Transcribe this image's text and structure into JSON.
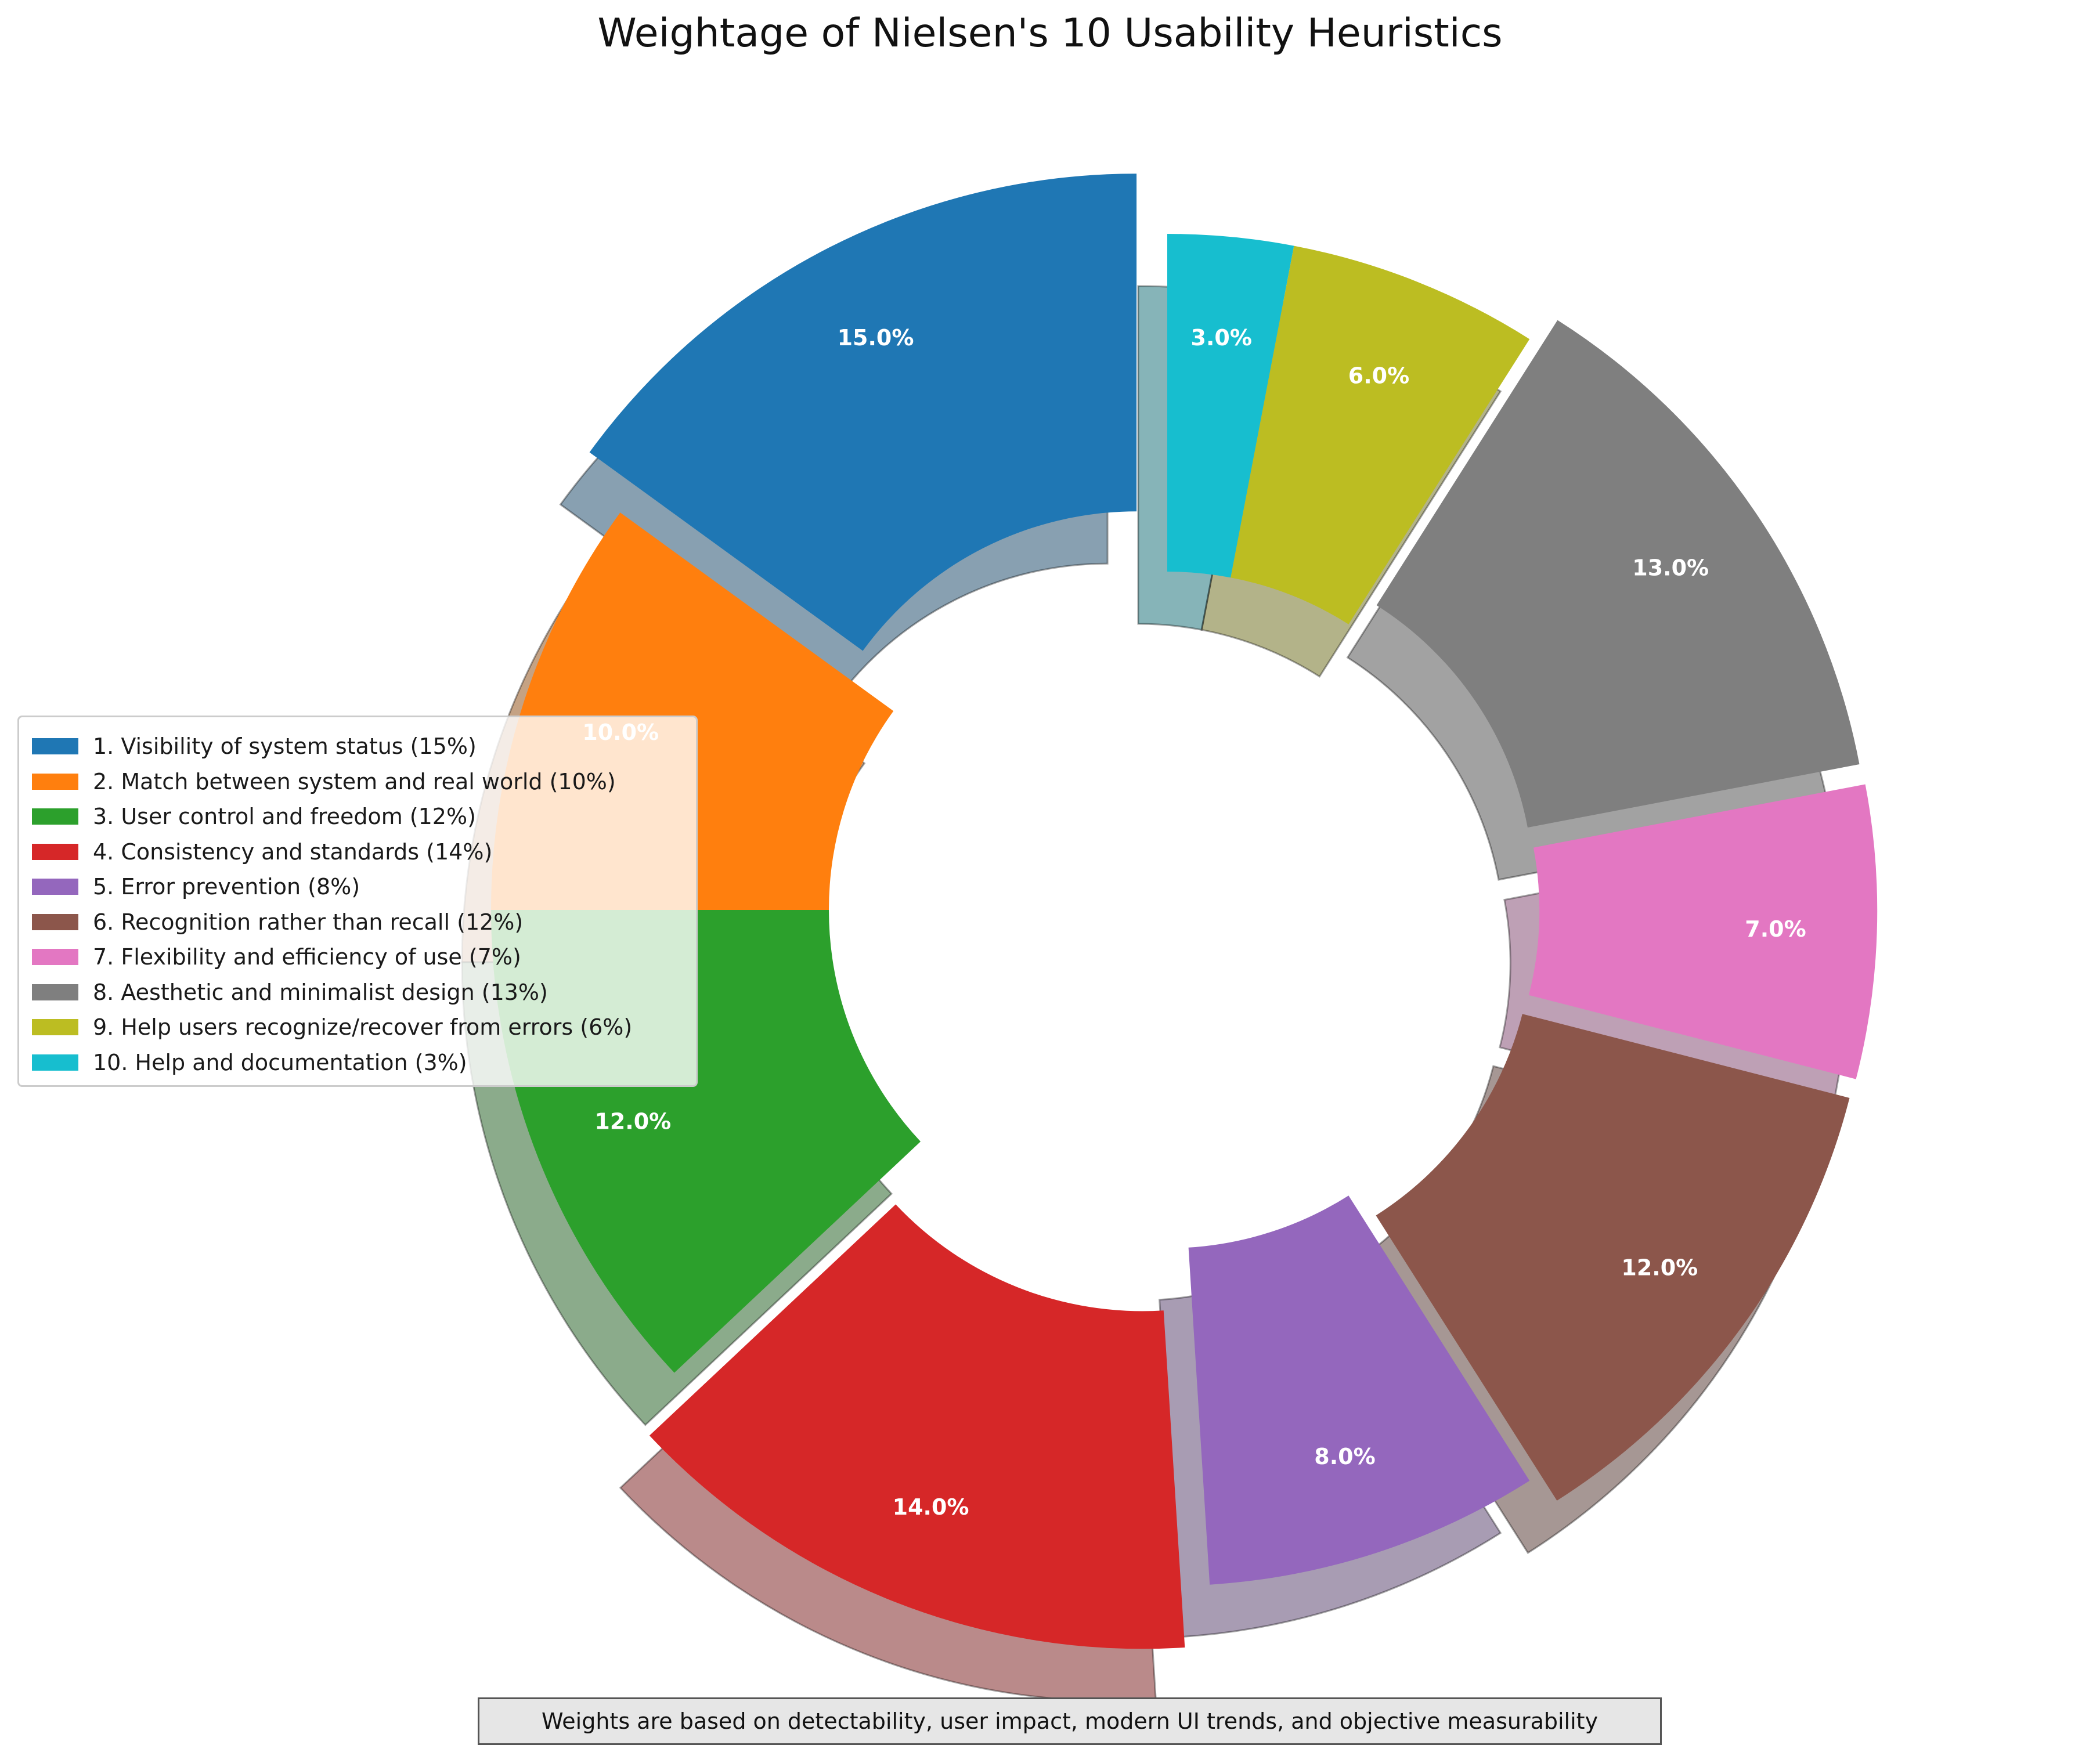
{
  "chart_data": {
    "type": "pie",
    "style": "donut",
    "title": "Weightage of Nielsen's 10 Usability Heuristics",
    "categories": [
      "1. Visibility of system status (15%)",
      "2. Match between system and real world (10%)",
      "3. User control and freedom (12%)",
      "4. Consistency and standards (14%)",
      "5. Error prevention (8%)",
      "6. Recognition rather than recall (12%)",
      "7. Flexibility and efficiency of use (7%)",
      "8. Aesthetic and minimalist design (13%)",
      "9. Help users recognize/recover from errors (6%)",
      "10. Help and documentation (3%)"
    ],
    "values": [
      15,
      10,
      12,
      14,
      8,
      12,
      7,
      13,
      6,
      3
    ],
    "labels": [
      "15.0%",
      "10.0%",
      "12.0%",
      "14.0%",
      "8.0%",
      "12.0%",
      "7.0%",
      "13.0%",
      "6.0%",
      "3.0%"
    ],
    "colors": [
      "#1f77b4",
      "#ff7f0e",
      "#2ca02c",
      "#d62728",
      "#9467bd",
      "#8c564b",
      "#e377c2",
      "#7f7f7f",
      "#bcbd22",
      "#17becf"
    ],
    "exploded": [
      0.1,
      0,
      0,
      0.1,
      0,
      0.05,
      0.05,
      0.05,
      0,
      0
    ],
    "start_angle_deg": 90,
    "direction": "counterclockwise",
    "shadow": true,
    "legend_position": "center-left",
    "footnote": "Weights are based on detectability, user impact, modern UI trends, and objective measurability"
  }
}
